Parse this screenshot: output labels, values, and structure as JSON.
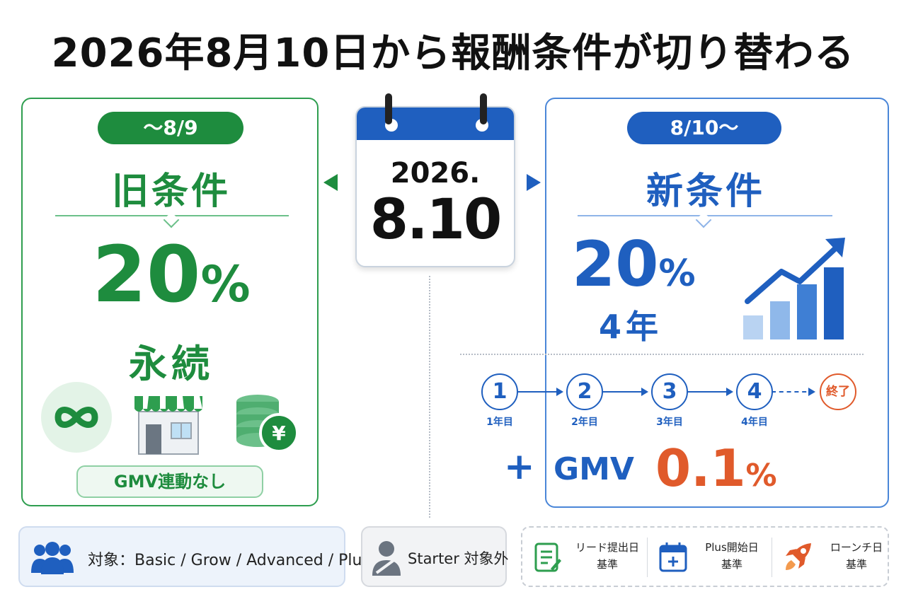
{
  "title": "2026年8月10日から報酬条件が切り替わる",
  "old": {
    "period": "～8/9",
    "condition": "旧条件",
    "rate_value": "20",
    "rate_unit": "%",
    "duration": "永続",
    "gmv_note": "GMV連動なし",
    "icons": [
      "infinity-icon",
      "store-icon",
      "coins-yen-icon"
    ],
    "coin_symbol": "¥",
    "color": "#1e8c3e"
  },
  "calendar": {
    "year": "2026.",
    "date": "8.10",
    "color": "#1f5fbf"
  },
  "new": {
    "period": "8/10～",
    "condition": "新条件",
    "rate_value": "20",
    "rate_unit": "%",
    "duration": "4年",
    "growth_icon": "growth-chart-icon",
    "steps": [
      {
        "num": "1",
        "label": "1年目"
      },
      {
        "num": "2",
        "label": "2年目"
      },
      {
        "num": "3",
        "label": "3年目"
      },
      {
        "num": "4",
        "label": "4年目"
      }
    ],
    "end_label": "終了",
    "plus": "+",
    "gmv": "GMV",
    "gmv_value": "0.1",
    "gmv_unit": "%",
    "color": "#1f5fbf",
    "accent": "#e05a2b"
  },
  "footer": {
    "target": "対象：Basic / Grow / Advanced / Plus",
    "starter": "Starter 対象外",
    "basis": [
      {
        "icon": "document-icon",
        "line1": "リード提出日",
        "line2": "基準"
      },
      {
        "icon": "calendar-plus-icon",
        "line1": "Plus開始日",
        "line2": "基準"
      },
      {
        "icon": "rocket-icon",
        "line1": "ローンチ日",
        "line2": "基準"
      }
    ]
  }
}
